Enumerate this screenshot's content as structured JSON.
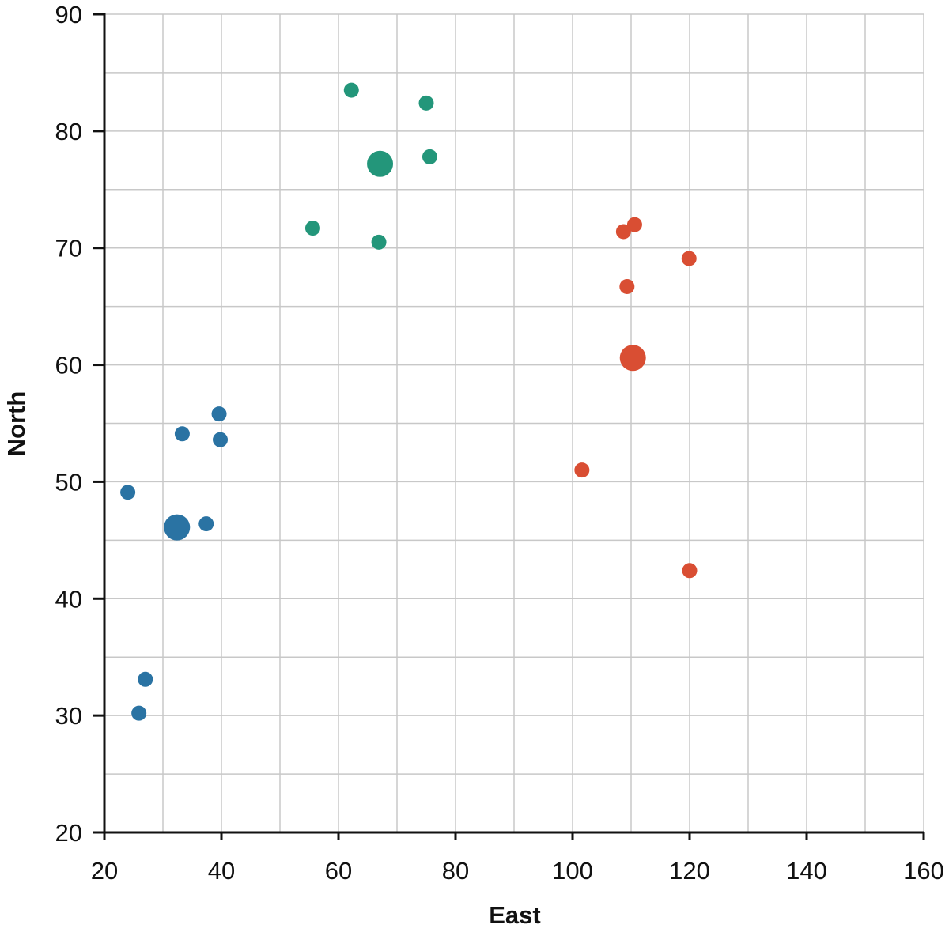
{
  "chart_data": {
    "type": "scatter",
    "title": "",
    "xlabel": "East",
    "ylabel": "North",
    "xlim": [
      20,
      160
    ],
    "ylim": [
      20,
      90
    ],
    "x_ticks": [
      20,
      40,
      60,
      80,
      100,
      120,
      140,
      160
    ],
    "y_ticks": [
      20,
      30,
      40,
      50,
      60,
      70,
      80,
      90
    ],
    "x_grid_step": 10,
    "y_grid_step": 5,
    "grid": true,
    "legend": "none",
    "series": [
      {
        "color": "#2a73a3",
        "points": [
          {
            "x": 24,
            "y": 49.1,
            "size": "small"
          },
          {
            "x": 25.9,
            "y": 30.2,
            "size": "small"
          },
          {
            "x": 27,
            "y": 33.1,
            "size": "small"
          },
          {
            "x": 33.3,
            "y": 54.1,
            "size": "small"
          },
          {
            "x": 37.4,
            "y": 46.4,
            "size": "small"
          },
          {
            "x": 39.6,
            "y": 55.8,
            "size": "small"
          },
          {
            "x": 39.8,
            "y": 53.6,
            "size": "small"
          },
          {
            "x": 32.4,
            "y": 46.1,
            "size": "large"
          }
        ]
      },
      {
        "color": "#23967a",
        "points": [
          {
            "x": 55.6,
            "y": 71.7,
            "size": "small"
          },
          {
            "x": 62.2,
            "y": 83.5,
            "size": "small"
          },
          {
            "x": 66.9,
            "y": 70.5,
            "size": "small"
          },
          {
            "x": 75,
            "y": 82.4,
            "size": "small"
          },
          {
            "x": 75.6,
            "y": 77.8,
            "size": "small"
          },
          {
            "x": 67.1,
            "y": 77.2,
            "size": "large"
          }
        ]
      },
      {
        "color": "#d94e33",
        "points": [
          {
            "x": 101.6,
            "y": 51,
            "size": "small"
          },
          {
            "x": 108.7,
            "y": 71.4,
            "size": "small"
          },
          {
            "x": 109.3,
            "y": 66.7,
            "size": "small"
          },
          {
            "x": 110.6,
            "y": 72,
            "size": "small"
          },
          {
            "x": 119.9,
            "y": 69.1,
            "size": "small"
          },
          {
            "x": 120,
            "y": 42.4,
            "size": "small"
          },
          {
            "x": 110.3,
            "y": 60.6,
            "size": "large"
          }
        ]
      }
    ]
  }
}
